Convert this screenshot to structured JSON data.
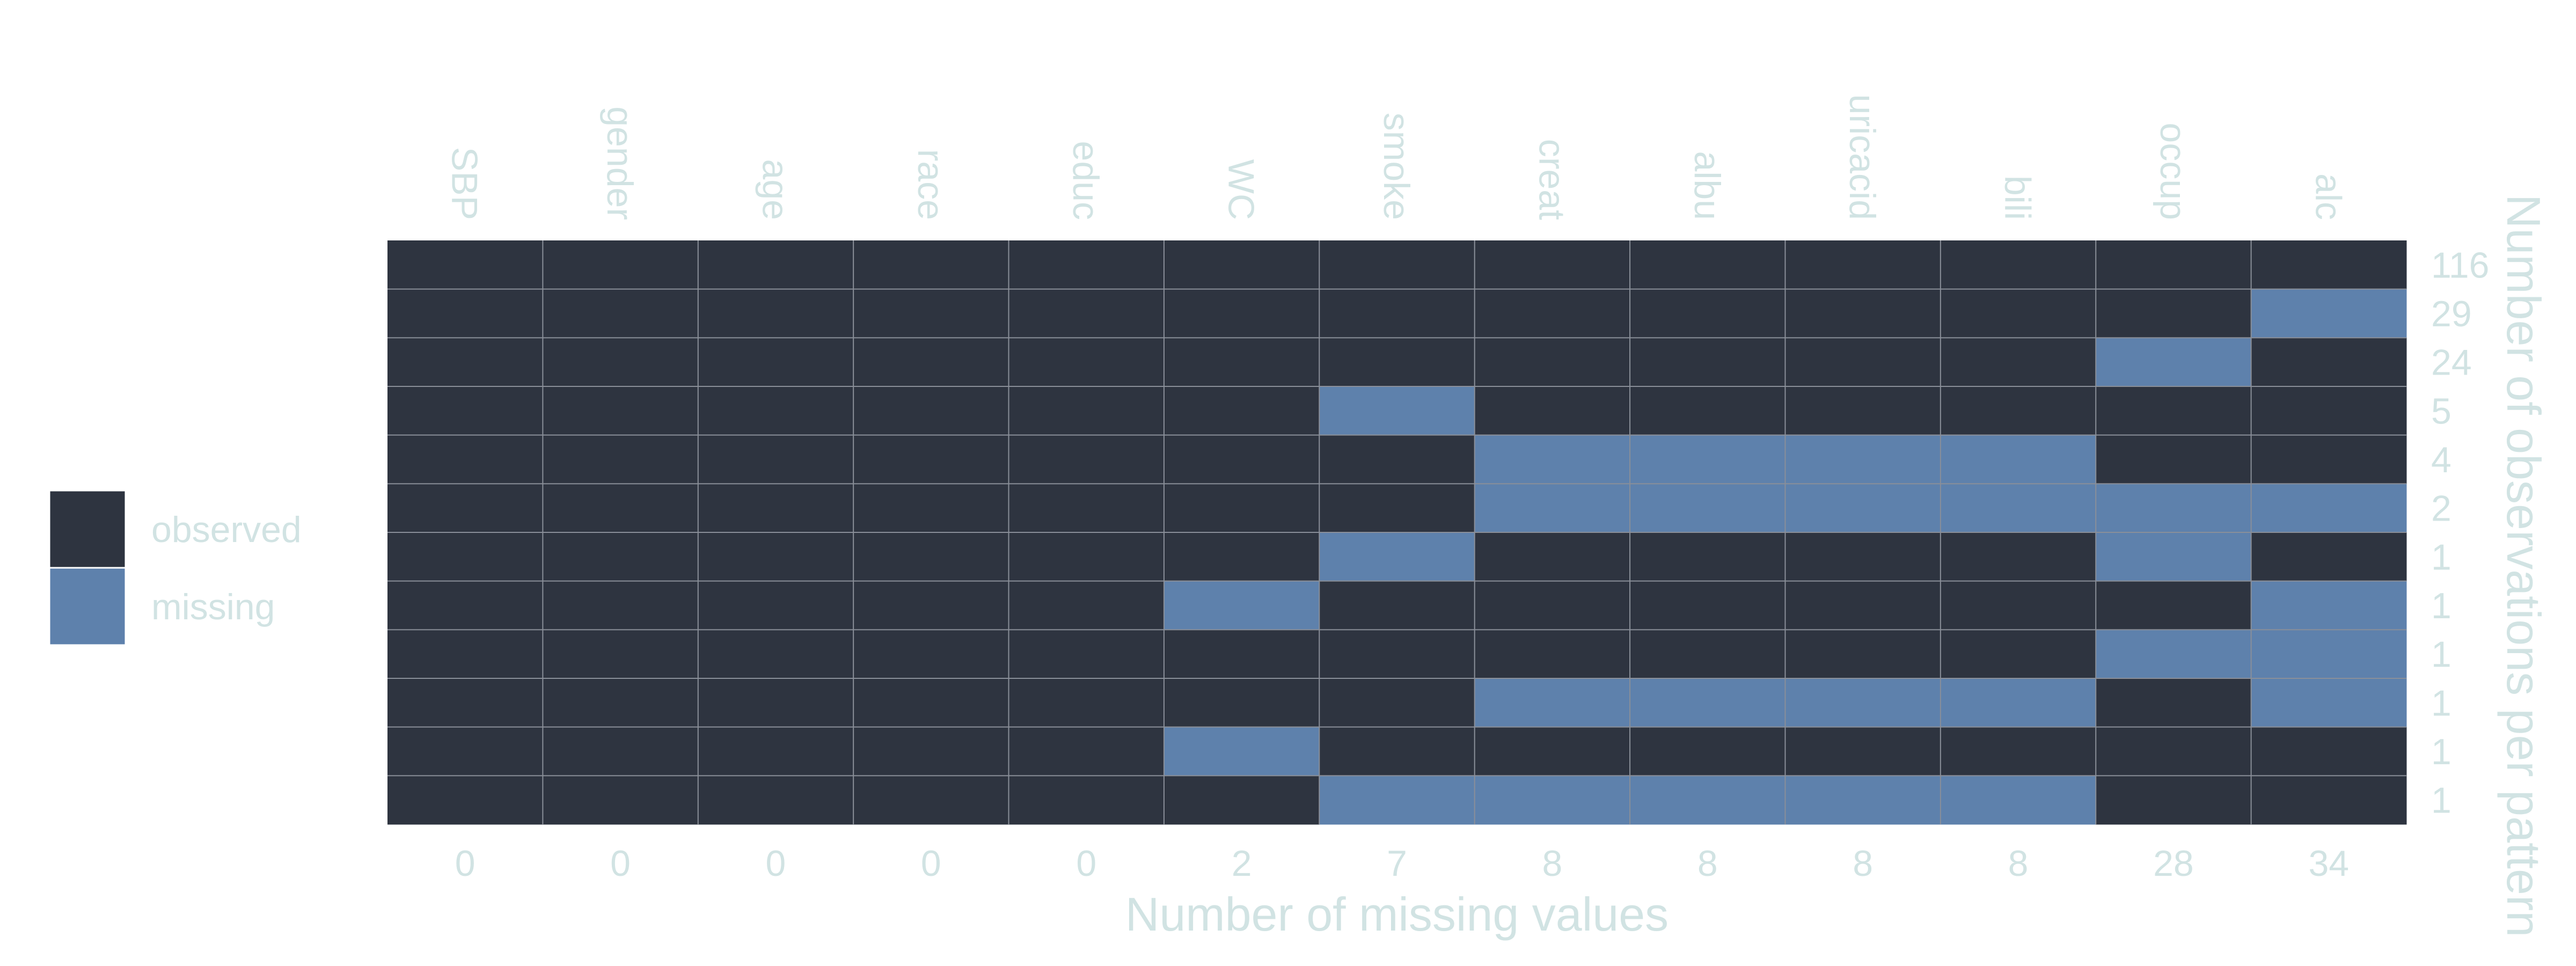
{
  "chart_data": {
    "type": "heatmap",
    "variables": [
      "SBP",
      "gender",
      "age",
      "race",
      "educ",
      "WC",
      "smoke",
      "creat",
      "albu",
      "uricacid",
      "bili",
      "occup",
      "alc"
    ],
    "missing_counts": [
      0,
      0,
      0,
      0,
      0,
      2,
      7,
      8,
      8,
      8,
      8,
      28,
      34
    ],
    "pattern_counts": [
      116,
      29,
      24,
      5,
      4,
      2,
      1,
      1,
      1,
      1,
      1,
      1
    ],
    "patterns": [
      [
        1,
        1,
        1,
        1,
        1,
        1,
        1,
        1,
        1,
        1,
        1,
        1,
        1
      ],
      [
        1,
        1,
        1,
        1,
        1,
        1,
        1,
        1,
        1,
        1,
        1,
        1,
        0
      ],
      [
        1,
        1,
        1,
        1,
        1,
        1,
        1,
        1,
        1,
        1,
        1,
        0,
        1
      ],
      [
        1,
        1,
        1,
        1,
        1,
        1,
        0,
        1,
        1,
        1,
        1,
        1,
        1
      ],
      [
        1,
        1,
        1,
        1,
        1,
        1,
        1,
        0,
        0,
        0,
        0,
        1,
        1
      ],
      [
        1,
        1,
        1,
        1,
        1,
        1,
        1,
        0,
        0,
        0,
        0,
        0,
        0
      ],
      [
        1,
        1,
        1,
        1,
        1,
        1,
        0,
        1,
        1,
        1,
        1,
        0,
        1
      ],
      [
        1,
        1,
        1,
        1,
        1,
        0,
        1,
        1,
        1,
        1,
        1,
        1,
        0
      ],
      [
        1,
        1,
        1,
        1,
        1,
        1,
        1,
        1,
        1,
        1,
        1,
        0,
        0
      ],
      [
        1,
        1,
        1,
        1,
        1,
        1,
        1,
        0,
        0,
        0,
        0,
        1,
        0
      ],
      [
        1,
        1,
        1,
        1,
        1,
        0,
        1,
        1,
        1,
        1,
        1,
        1,
        1
      ],
      [
        1,
        1,
        1,
        1,
        1,
        1,
        0,
        0,
        0,
        0,
        0,
        1,
        1
      ]
    ],
    "xlabel": "Number of missing values",
    "ylabel": "Number of observations per pattern",
    "legend": {
      "position": "left",
      "items": [
        {
          "label": "observed",
          "color": "#2e3440"
        },
        {
          "label": "missing",
          "color": "#5e81ac"
        }
      ]
    },
    "grid": true
  },
  "colors": {
    "observed": "#2e3440",
    "missing": "#5e81ac",
    "text": "#d1e3e3",
    "grid": "#8a8f99"
  }
}
